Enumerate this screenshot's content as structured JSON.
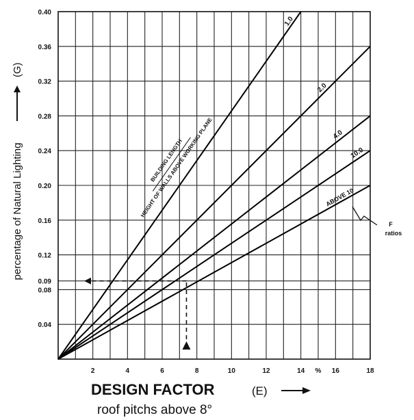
{
  "chart_data": {
    "type": "line",
    "x": [
      0,
      18
    ],
    "xlim": [
      0,
      18
    ],
    "ylim": [
      0,
      0.4
    ],
    "x_ticks": [
      2,
      4,
      6,
      8,
      10,
      12,
      14,
      16,
      18
    ],
    "x_tick_labels": [
      "2",
      "4",
      "6",
      "8",
      "10",
      "12",
      "14",
      "16",
      "18"
    ],
    "x_tick_percent_symbol": "%",
    "y_ticks": [
      0.04,
      0.08,
      0.09,
      0.12,
      0.16,
      0.2,
      0.24,
      0.28,
      0.32,
      0.36,
      0.4
    ],
    "y_tick_labels": [
      "0.04",
      "0.08",
      "0.09",
      "0.12",
      "0.16",
      "0.20",
      "0.24",
      "0.28",
      "0.32",
      "0.36",
      "0.40"
    ],
    "grid": true,
    "xlabel": "DESIGN FACTOR",
    "xlabel_symbol": "(E)",
    "xlabel_sub": "roof pitchs above 8°",
    "ylabel": "percentage of Natural Lighting",
    "ylabel_symbol": "(G)",
    "annotation_line1": "BUILDING LENGTH",
    "annotation_line2": "HEIGHT OF WALLS ABOVE WORKING PLANE",
    "ratio_label_line1": "F",
    "ratio_label_line2": "ratios",
    "series": [
      {
        "name": "1.0",
        "values": [
          0,
          0.4
        ],
        "x_end": 14
      },
      {
        "name": "2.0",
        "values": [
          0,
          0.36
        ]
      },
      {
        "name": "4.0",
        "values": [
          0,
          0.28
        ]
      },
      {
        "name": "10.0",
        "values": [
          0,
          0.24
        ]
      },
      {
        "name": "ABOVE 10",
        "values": [
          0,
          0.2
        ]
      }
    ],
    "example": {
      "x": 7.4,
      "y": 0.09
    }
  }
}
